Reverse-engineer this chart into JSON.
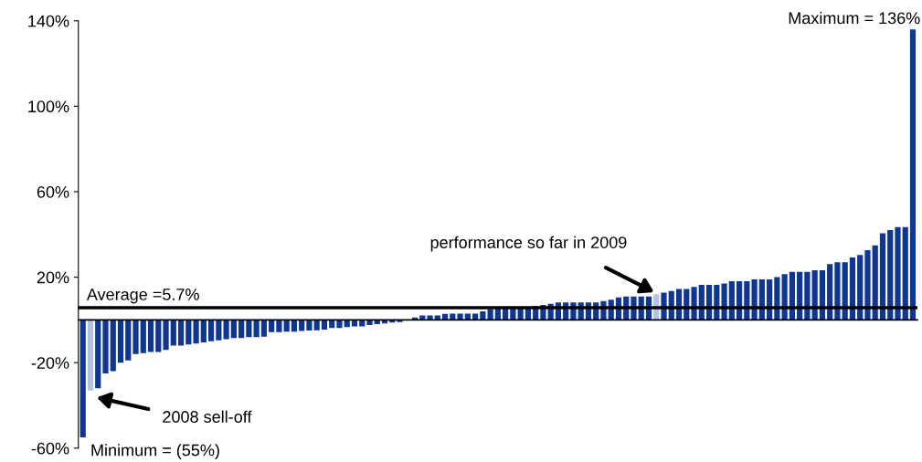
{
  "chart_data": {
    "type": "bar",
    "categories": [
      null,
      null,
      null,
      null,
      null,
      null,
      null,
      null,
      null,
      null,
      null,
      null,
      null,
      null,
      null,
      null,
      null,
      null,
      null,
      null,
      null,
      null,
      null,
      null,
      null,
      null,
      null,
      null,
      null,
      null,
      null,
      null,
      null,
      null,
      null,
      null,
      null,
      null,
      null,
      null,
      null,
      null,
      null,
      null,
      null,
      null,
      null,
      null,
      null,
      null,
      null,
      null,
      null,
      null,
      null,
      null,
      null,
      null,
      null,
      null,
      null,
      null,
      null,
      null,
      null,
      null,
      null,
      null,
      null,
      null,
      null,
      null,
      null,
      null,
      null,
      null,
      null,
      null,
      null,
      null,
      null,
      null,
      null,
      null,
      null,
      null,
      null,
      null,
      null,
      null,
      null,
      null,
      null,
      null,
      null,
      null,
      null,
      null,
      null,
      null,
      null,
      null,
      null,
      null,
      null,
      null,
      null,
      null,
      null,
      null,
      null
    ],
    "values": [
      -55,
      -33,
      -32,
      -25,
      -24,
      -20,
      -19,
      -16,
      -15.5,
      -15,
      -15,
      -14,
      -12,
      -12,
      -11.5,
      -11,
      -10.5,
      -10,
      -9.5,
      -9,
      -8.5,
      -8.5,
      -8.1,
      -8.1,
      -7.8,
      -5.7,
      -5.7,
      -5.5,
      -5.5,
      -5.2,
      -5,
      -4.8,
      -4.5,
      -3.8,
      -3.8,
      -3.4,
      -3,
      -3,
      -2.4,
      -2,
      -1.6,
      -1.2,
      -1,
      0,
      1.1,
      2.1,
      2.1,
      2.1,
      2.8,
      3,
      3,
      3,
      3,
      4,
      5,
      5.5,
      5.5,
      5.8,
      6,
      6.2,
      6.5,
      7,
      7.5,
      8.2,
      8.2,
      8.2,
      8.2,
      8.2,
      8.2,
      8.8,
      9.5,
      10.5,
      11,
      11,
      11,
      11,
      12,
      12.8,
      13.5,
      14.5,
      14.5,
      15.4,
      16.4,
      16.4,
      16.4,
      17.1,
      18.1,
      18.1,
      18.1,
      19,
      19,
      19,
      20,
      21.4,
      22.5,
      22.5,
      22.5,
      23.2,
      23.2,
      26.1,
      27,
      27,
      29.2,
      30.4,
      32.7,
      34.9,
      40.6,
      42,
      43.4,
      43.4,
      136
    ],
    "colors": [
      "#0f3690",
      "#b4c4e0",
      "#0f3690",
      "#0f3690",
      "#0f3690",
      "#0f3690",
      "#0f3690",
      "#0f3690",
      "#0f3690",
      "#0f3690",
      "#0f3690",
      "#0f3690",
      "#0f3690",
      "#0f3690",
      "#0f3690",
      "#0f3690",
      "#0f3690",
      "#0f3690",
      "#0f3690",
      "#0f3690",
      "#0f3690",
      "#0f3690",
      "#0f3690",
      "#0f3690",
      "#0f3690",
      "#0f3690",
      "#0f3690",
      "#0f3690",
      "#0f3690",
      "#0f3690",
      "#0f3690",
      "#0f3690",
      "#0f3690",
      "#0f3690",
      "#0f3690",
      "#0f3690",
      "#0f3690",
      "#0f3690",
      "#0f3690",
      "#0f3690",
      "#0f3690",
      "#0f3690",
      "#0f3690",
      "#0f3690",
      "#0f3690",
      "#0f3690",
      "#0f3690",
      "#0f3690",
      "#0f3690",
      "#0f3690",
      "#0f3690",
      "#0f3690",
      "#0f3690",
      "#0f3690",
      "#0f3690",
      "#0f3690",
      "#0f3690",
      "#0f3690",
      "#0f3690",
      "#0f3690",
      "#0f3690",
      "#0f3690",
      "#0f3690",
      "#0f3690",
      "#0f3690",
      "#0f3690",
      "#0f3690",
      "#0f3690",
      "#0f3690",
      "#0f3690",
      "#0f3690",
      "#0f3690",
      "#0f3690",
      "#0f3690",
      "#0f3690",
      "#0f3690",
      "#b4c4e0",
      "#0f3690",
      "#0f3690",
      "#0f3690",
      "#0f3690",
      "#0f3690",
      "#0f3690",
      "#0f3690",
      "#0f3690",
      "#0f3690",
      "#0f3690",
      "#0f3690",
      "#0f3690",
      "#0f3690",
      "#0f3690",
      "#0f3690",
      "#0f3690",
      "#0f3690",
      "#0f3690",
      "#0f3690",
      "#0f3690",
      "#0f3690",
      "#0f3690",
      "#0f3690",
      "#0f3690",
      "#0f3690",
      "#0f3690",
      "#0f3690",
      "#0f3690",
      "#0f3690",
      "#0f3690",
      "#0f3690",
      "#0f3690",
      "#0f3690",
      "#0f3690"
    ],
    "ylim": [
      -60,
      140
    ],
    "yticks": [
      {
        "value": -60,
        "label": "-60%"
      },
      {
        "value": -20,
        "label": "-20%"
      },
      {
        "value": 20,
        "label": "20%"
      },
      {
        "value": 60,
        "label": "60%"
      },
      {
        "value": 100,
        "label": "100%"
      },
      {
        "value": 140,
        "label": "140%"
      }
    ],
    "tick_labels": "y",
    "grid": false,
    "ref_lines": [
      {
        "axis": "y",
        "value": 5.7,
        "label": "Average =5.7%",
        "color": "#000000"
      }
    ],
    "annotations": [
      "Maximum = 136%",
      "Minimum = (55%)",
      "performance so far in 2009",
      "2008 sell-off"
    ]
  }
}
